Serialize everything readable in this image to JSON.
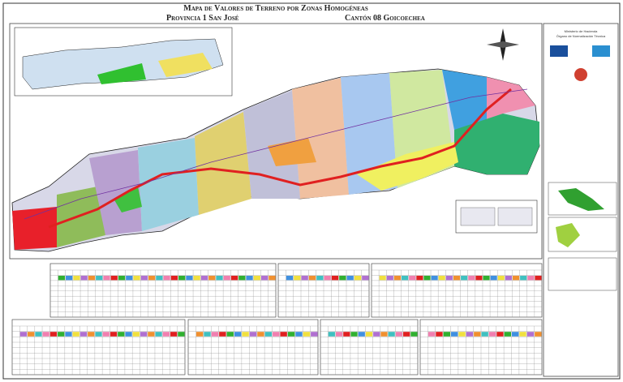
{
  "header": {
    "title": "Mapa de Valores de Terreno por Zonas Homogéneas",
    "province": "Provincia 1 San José",
    "canton": "Cantón 08 Goicoechea"
  },
  "panel": {
    "ministry": "Ministerio de Hacienda",
    "organ": "Órgano de Normalización Técnica"
  }
}
